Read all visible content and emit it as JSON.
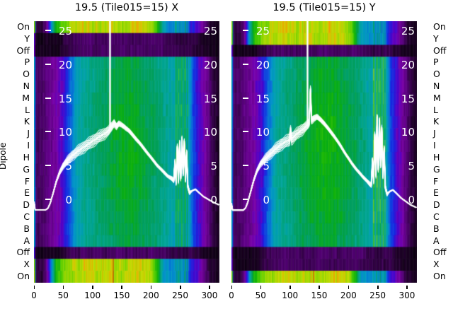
{
  "figure": {
    "y_axis_label": "Dipole",
    "row_labels": [
      "On",
      "Y",
      "Off",
      "P",
      "O",
      "N",
      "M",
      "L",
      "K",
      "J",
      "I",
      "H",
      "G",
      "F",
      "E",
      "D",
      "C",
      "B",
      "A",
      "Off",
      "X",
      "On"
    ],
    "x_ticks": [
      0,
      50,
      100,
      150,
      200,
      250,
      300
    ],
    "power_ticks": [
      25,
      20,
      15,
      10,
      5,
      0
    ]
  },
  "colors": {
    "background": "#ffffff",
    "curve": "#ffffff",
    "tick_text_inner": "#ffffff",
    "text": "#000000"
  },
  "chart_data": {
    "type": "heatmap",
    "title_left": "19.5 (Tile015=15) X",
    "title_right": "19.5 (Tile015=15) Y",
    "description": "Tile dipole test: per-dipole bandpass spectra heatmap (rows = dipole/state, x = frequency channel) with overlaid white per-dipole power curves; power scale ticks 0-25 drawn inside panels.",
    "x_range": [
      0,
      316
    ],
    "x_axis_ticks": [
      0,
      50,
      100,
      150,
      200,
      250,
      300
    ],
    "power_ticks": [
      25,
      20,
      15,
      10,
      5,
      0
    ],
    "row_labels": [
      "On",
      "Y",
      "Off",
      "P",
      "O",
      "N",
      "M",
      "L",
      "K",
      "J",
      "I",
      "H",
      "G",
      "F",
      "E",
      "D",
      "C",
      "B",
      "A",
      "Off",
      "X",
      "On"
    ],
    "rfi_channels": [
      242,
      244,
      247,
      249,
      252,
      254,
      257,
      259,
      262
    ],
    "row_profiles": {
      "bright": [
        [
          0,
          0.85
        ],
        [
          1,
          0.75
        ],
        [
          2,
          0.4
        ],
        [
          3,
          0.08
        ],
        [
          14,
          0.08
        ],
        [
          20,
          0.12
        ],
        [
          26,
          0.3
        ],
        [
          32,
          0.55
        ],
        [
          38,
          0.72
        ],
        [
          50,
          0.8
        ],
        [
          70,
          0.85
        ],
        [
          90,
          0.87
        ],
        [
          110,
          0.84
        ],
        [
          130,
          0.86
        ],
        [
          150,
          0.83
        ],
        [
          170,
          0.87
        ],
        [
          190,
          0.86
        ],
        [
          205,
          0.8
        ],
        [
          212,
          0.68
        ],
        [
          222,
          0.48
        ],
        [
          232,
          0.45
        ],
        [
          240,
          0.46
        ],
        [
          262,
          0.44
        ],
        [
          268,
          0.3
        ],
        [
          280,
          0.24
        ],
        [
          292,
          0.12
        ],
        [
          300,
          0.07
        ],
        [
          316,
          0.04
        ]
      ],
      "mid": [
        [
          0,
          0.5
        ],
        [
          1,
          0.45
        ],
        [
          2,
          0.3
        ],
        [
          3,
          0.1
        ],
        [
          16,
          0.11
        ],
        [
          28,
          0.15
        ],
        [
          40,
          0.2
        ],
        [
          52,
          0.28
        ],
        [
          62,
          0.4
        ],
        [
          72,
          0.5
        ],
        [
          85,
          0.55
        ],
        [
          100,
          0.58
        ],
        [
          120,
          0.62
        ],
        [
          145,
          0.66
        ],
        [
          170,
          0.67
        ],
        [
          190,
          0.64
        ],
        [
          210,
          0.6
        ],
        [
          225,
          0.56
        ],
        [
          238,
          0.52
        ],
        [
          265,
          0.5
        ],
        [
          272,
          0.35
        ],
        [
          282,
          0.26
        ],
        [
          294,
          0.16
        ],
        [
          304,
          0.09
        ],
        [
          316,
          0.05
        ]
      ],
      "dark": [
        [
          0,
          0.28
        ],
        [
          1,
          0.2
        ],
        [
          2,
          0.08
        ],
        [
          3,
          0.04
        ],
        [
          40,
          0.045
        ],
        [
          55,
          0.08
        ],
        [
          70,
          0.1
        ],
        [
          90,
          0.11
        ],
        [
          120,
          0.1
        ],
        [
          150,
          0.11
        ],
        [
          180,
          0.1
        ],
        [
          210,
          0.11
        ],
        [
          235,
          0.09
        ],
        [
          250,
          0.08
        ],
        [
          268,
          0.09
        ],
        [
          285,
          0.06
        ],
        [
          300,
          0.045
        ],
        [
          316,
          0.035
        ]
      ]
    },
    "curve_spread": [
      [
        0,
        0
      ],
      [
        30,
        0
      ],
      [
        45,
        0.6
      ],
      [
        60,
        1.2
      ],
      [
        80,
        1.5
      ],
      [
        100,
        1.6
      ],
      [
        120,
        1.5
      ],
      [
        135,
        1.0
      ],
      [
        150,
        0.6
      ],
      [
        170,
        0.5
      ],
      [
        200,
        0.4
      ],
      [
        230,
        0.4
      ],
      [
        245,
        0.8
      ],
      [
        265,
        0.6
      ],
      [
        270,
        0.1
      ],
      [
        316,
        0
      ]
    ],
    "n_dipole_curves": 16,
    "panels": [
      {
        "id": "X",
        "title": "19.5 (Tile015=15) X",
        "row_types": [
          "bright",
          "dark",
          "dark",
          "mid",
          "mid",
          "mid",
          "mid",
          "mid",
          "mid",
          "mid",
          "mid",
          "mid",
          "mid",
          "mid",
          "mid",
          "mid",
          "mid",
          "mid",
          "mid",
          "dark",
          "bright",
          "bright"
        ],
        "row_gains": [
          1,
          1,
          1,
          0.9,
          0.92,
          0.94,
          0.97,
          1.0,
          1.03,
          1.05,
          1.06,
          1.06,
          1.05,
          1.03,
          1.0,
          0.97,
          0.94,
          0.9,
          0.87,
          1,
          1,
          1
        ],
        "mid_contrast": 1.0,
        "rfi_boost": 0.15,
        "spike_channels": [
          130
        ],
        "hot_columns": [
          {
            "row_index": 20,
            "channel": 117,
            "v": 0.9
          },
          {
            "row_index": 20,
            "channel": 135,
            "v": 1.0
          },
          {
            "row_index": 21,
            "channel": 117,
            "v": 0.9
          },
          {
            "row_index": 21,
            "channel": 135,
            "v": 1.0
          }
        ],
        "curve": [
          [
            0,
            -0.1
          ],
          [
            2,
            -1.35
          ],
          [
            20,
            -1.35
          ],
          [
            24,
            -1.1
          ],
          [
            28,
            -0.3
          ],
          [
            33,
            1.2
          ],
          [
            38,
            2.8
          ],
          [
            44,
            4.2
          ],
          [
            50,
            5.2
          ],
          [
            58,
            6.0
          ],
          [
            66,
            6.7
          ],
          [
            76,
            7.4
          ],
          [
            88,
            8.1
          ],
          [
            100,
            8.8
          ],
          [
            112,
            9.5
          ],
          [
            122,
            10.0
          ],
          [
            128,
            10.4
          ],
          [
            133,
            11.0
          ],
          [
            137,
            11.5
          ],
          [
            141,
            11.0
          ],
          [
            145,
            11.4
          ],
          [
            150,
            11.2
          ],
          [
            155,
            10.9
          ],
          [
            162,
            10.4
          ],
          [
            170,
            9.6
          ],
          [
            180,
            8.6
          ],
          [
            190,
            7.5
          ],
          [
            200,
            6.4
          ],
          [
            210,
            5.3
          ],
          [
            220,
            4.4
          ],
          [
            228,
            3.7
          ],
          [
            235,
            3.3
          ],
          [
            239,
            3.0
          ],
          [
            241,
            5.8
          ],
          [
            243,
            2.7
          ],
          [
            245,
            8.0
          ],
          [
            247,
            3.0
          ],
          [
            249,
            8.6
          ],
          [
            251,
            3.3
          ],
          [
            253,
            9.2
          ],
          [
            255,
            4.0
          ],
          [
            257,
            8.8
          ],
          [
            259,
            3.1
          ],
          [
            261,
            7.2
          ],
          [
            263,
            2.1
          ],
          [
            266,
            1.2
          ],
          [
            271,
            1.5
          ],
          [
            276,
            1.7
          ],
          [
            282,
            1.2
          ],
          [
            290,
            0.6
          ],
          [
            298,
            0.2
          ],
          [
            306,
            -0.2
          ],
          [
            316,
            -0.6
          ]
        ]
      },
      {
        "id": "Y",
        "title": "19.5 (Tile015=15) Y",
        "row_types": [
          "bright",
          "bright",
          "dark",
          "mid",
          "mid",
          "mid",
          "mid",
          "mid",
          "mid",
          "mid",
          "mid",
          "mid",
          "mid",
          "mid",
          "mid",
          "mid",
          "mid",
          "mid",
          "mid",
          "dark",
          "dark",
          "bright"
        ],
        "row_gains": [
          1,
          1,
          1,
          0.9,
          0.93,
          0.95,
          0.98,
          1.01,
          1.04,
          1.06,
          1.07,
          1.07,
          1.06,
          1.04,
          1.01,
          0.98,
          0.94,
          0.9,
          0.87,
          1,
          1,
          1
        ],
        "mid_contrast": 1.08,
        "rfi_boost": 0.22,
        "spike_channels": [
          130
        ],
        "hot_columns": [
          {
            "row_index": 0,
            "channel": 124,
            "v": 0.92
          },
          {
            "row_index": 1,
            "channel": 124,
            "v": 0.9
          },
          {
            "row_index": 21,
            "channel": 136,
            "v": 0.93
          },
          {
            "row_index": 21,
            "channel": 140,
            "v": 1.0
          },
          {
            "row_index": 21,
            "channel": 175,
            "v": 0.92
          }
        ],
        "curve": [
          [
            0,
            -0.4
          ],
          [
            2,
            -1.4
          ],
          [
            20,
            -1.4
          ],
          [
            24,
            -1.1
          ],
          [
            28,
            -0.2
          ],
          [
            33,
            1.4
          ],
          [
            38,
            3.0
          ],
          [
            44,
            4.5
          ],
          [
            50,
            5.5
          ],
          [
            58,
            6.2
          ],
          [
            66,
            6.9
          ],
          [
            76,
            7.7
          ],
          [
            86,
            8.4
          ],
          [
            96,
            8.9
          ],
          [
            99,
            9.0
          ],
          [
            101,
            10.3
          ],
          [
            103,
            9.2
          ],
          [
            112,
            9.9
          ],
          [
            122,
            10.6
          ],
          [
            130,
            11.2
          ],
          [
            133,
            11.6
          ],
          [
            135,
            16.5
          ],
          [
            137,
            11.9
          ],
          [
            141,
            12.2
          ],
          [
            146,
            12.4
          ],
          [
            151,
            12.1
          ],
          [
            158,
            11.5
          ],
          [
            166,
            10.6
          ],
          [
            176,
            9.5
          ],
          [
            186,
            8.2
          ],
          [
            196,
            6.8
          ],
          [
            206,
            5.5
          ],
          [
            215,
            4.5
          ],
          [
            224,
            3.6
          ],
          [
            231,
            3.0
          ],
          [
            236,
            2.5
          ],
          [
            239,
            2.3
          ],
          [
            241,
            6.0
          ],
          [
            243,
            2.9
          ],
          [
            245,
            9.8
          ],
          [
            247,
            3.8
          ],
          [
            249,
            12.4
          ],
          [
            251,
            4.6
          ],
          [
            253,
            11.9
          ],
          [
            255,
            5.2
          ],
          [
            257,
            10.8
          ],
          [
            259,
            3.6
          ],
          [
            261,
            7.8
          ],
          [
            263,
            2.0
          ],
          [
            266,
            1.0
          ],
          [
            271,
            1.4
          ],
          [
            276,
            1.6
          ],
          [
            282,
            1.1
          ],
          [
            290,
            0.4
          ],
          [
            298,
            -0.1
          ],
          [
            306,
            -0.6
          ],
          [
            316,
            -1.0
          ]
        ]
      }
    ]
  }
}
